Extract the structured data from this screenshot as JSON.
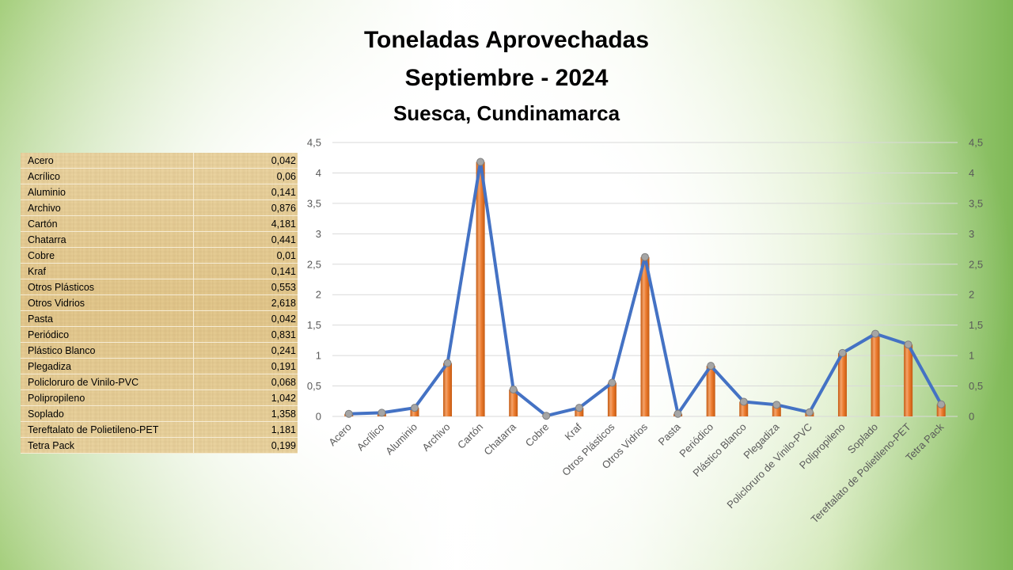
{
  "header": {
    "title_line1": "Toneladas Aprovechadas",
    "title_line2": "Septiembre - 2024",
    "subtitle": "Suesca, Cundinamarca"
  },
  "table": {
    "rows": [
      {
        "label": "Acero",
        "value": "0,042"
      },
      {
        "label": "Acrílico",
        "value": "0,06"
      },
      {
        "label": "Aluminio",
        "value": "0,141"
      },
      {
        "label": "Archivo",
        "value": "0,876"
      },
      {
        "label": "Cartón",
        "value": "4,181"
      },
      {
        "label": "Chatarra",
        "value": "0,441"
      },
      {
        "label": "Cobre",
        "value": "0,01"
      },
      {
        "label": "Kraf",
        "value": "0,141"
      },
      {
        "label": "Otros Plásticos",
        "value": "0,553"
      },
      {
        "label": "Otros Vidrios",
        "value": "2,618"
      },
      {
        "label": "Pasta",
        "value": "0,042"
      },
      {
        "label": "Periódico",
        "value": "0,831"
      },
      {
        "label": "Plástico Blanco",
        "value": "0,241"
      },
      {
        "label": "Plegadiza",
        "value": "0,191"
      },
      {
        "label": "Policloruro de Vinilo-PVC",
        "value": "0,068"
      },
      {
        "label": "Polipropileno",
        "value": "1,042"
      },
      {
        "label": "Soplado",
        "value": "1,358"
      },
      {
        "label": "Tereftalato de Polietileno-PET",
        "value": "1,181"
      },
      {
        "label": "Tetra Pack",
        "value": "0,199"
      }
    ]
  },
  "chart_data": {
    "type": "bar",
    "categories": [
      "Acero",
      "Acrílico",
      "Aluminio",
      "Archivo",
      "Cartón",
      "Chatarra",
      "Cobre",
      "Kraf",
      "Otros Plásticos",
      "Otros Vidrios",
      "Pasta",
      "Periódico",
      "Plástico Blanco",
      "Plegadiza",
      "Policloruro de Vinilo-PVC",
      "Polipropileno",
      "Soplado",
      "Tereftalato de Polietileno-PET",
      "Tetra Pack"
    ],
    "series": [
      {
        "type": "bar",
        "values": [
          0.042,
          0.06,
          0.141,
          0.876,
          4.181,
          0.441,
          0.01,
          0.141,
          0.553,
          2.618,
          0.042,
          0.831,
          0.241,
          0.191,
          0.068,
          1.042,
          1.358,
          1.181,
          0.199
        ]
      },
      {
        "type": "line",
        "values": [
          0.042,
          0.06,
          0.141,
          0.876,
          4.181,
          0.441,
          0.01,
          0.141,
          0.553,
          2.618,
          0.042,
          0.831,
          0.241,
          0.191,
          0.068,
          1.042,
          1.358,
          1.181,
          0.199
        ]
      }
    ],
    "ylim": [
      0,
      4.5
    ],
    "yticks": [
      "0",
      "0,5",
      "1",
      "1,5",
      "2",
      "2,5",
      "3",
      "3,5",
      "4",
      "4,5"
    ],
    "secondary_yticks": [
      "0",
      "0,5",
      "1",
      "1,5",
      "2",
      "2,5",
      "3",
      "3,5",
      "4",
      "4,5"
    ],
    "grid": true,
    "legend": "none",
    "colors": {
      "bar": "#ed7d31",
      "bar_dark": "#c55a11",
      "line": "#4472c4",
      "marker": "#a5a5a5",
      "grid": "#d9d9d9"
    }
  }
}
